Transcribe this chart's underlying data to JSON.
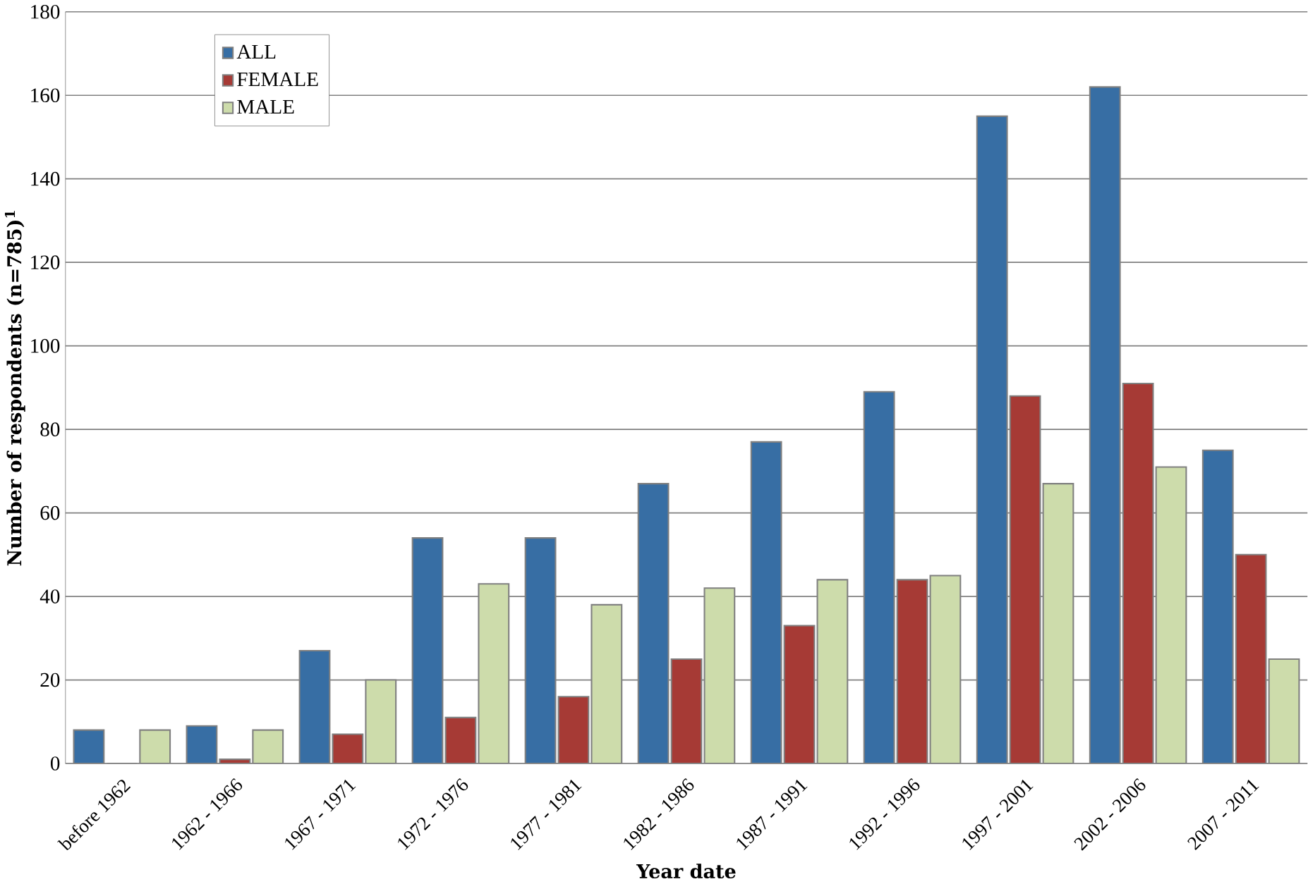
{
  "chart_data": {
    "type": "bar",
    "xlabel": "Year date",
    "ylabel": "Number of respondents (n=785)$^{1}$",
    "categories": [
      "before 1962",
      "1962 - 1966",
      "1967 - 1971",
      "1972 - 1976",
      "1977 - 1981",
      "1982 - 1986",
      "1987 - 1991",
      "1992 - 1996",
      "1997 - 2001",
      "2002 - 2006",
      "2007 - 2011"
    ],
    "series": [
      {
        "name": "ALL",
        "color": "#376ea4",
        "values": [
          8,
          9,
          27,
          54,
          54,
          67,
          77,
          89,
          155,
          162,
          75
        ]
      },
      {
        "name": "FEMALE",
        "color": "#a63a35",
        "values": [
          0,
          1,
          7,
          11,
          16,
          25,
          33,
          44,
          88,
          91,
          50
        ]
      },
      {
        "name": "MALE",
        "color": "#cddcab",
        "values": [
          8,
          8,
          20,
          43,
          38,
          42,
          44,
          45,
          67,
          71,
          25
        ]
      }
    ],
    "ylim": [
      0,
      180
    ],
    "yticks": [
      0,
      20,
      40,
      60,
      80,
      100,
      120,
      140,
      160,
      180
    ],
    "grid": "y",
    "legend": "top left"
  }
}
